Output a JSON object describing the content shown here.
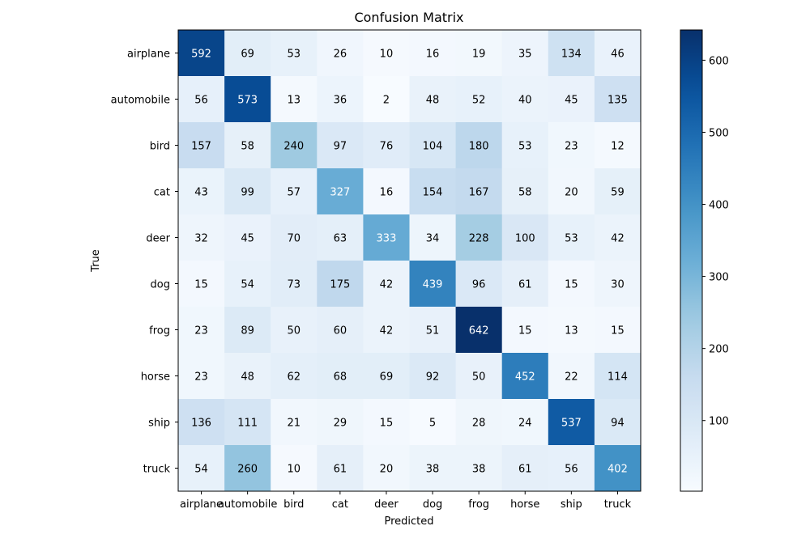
{
  "chart_data": {
    "type": "heatmap",
    "title": "Confusion Matrix",
    "xlabel": "Predicted",
    "ylabel": "True",
    "x_categories": [
      "airplane",
      "automobile",
      "bird",
      "cat",
      "deer",
      "dog",
      "frog",
      "horse",
      "ship",
      "truck"
    ],
    "y_categories": [
      "airplane",
      "automobile",
      "bird",
      "cat",
      "deer",
      "dog",
      "frog",
      "horse",
      "ship",
      "truck"
    ],
    "values": [
      [
        592,
        69,
        53,
        26,
        10,
        16,
        19,
        35,
        134,
        46
      ],
      [
        56,
        573,
        13,
        36,
        2,
        48,
        52,
        40,
        45,
        135
      ],
      [
        157,
        58,
        240,
        97,
        76,
        104,
        180,
        53,
        23,
        12
      ],
      [
        43,
        99,
        57,
        327,
        16,
        154,
        167,
        58,
        20,
        59
      ],
      [
        32,
        45,
        70,
        63,
        333,
        34,
        228,
        100,
        53,
        42
      ],
      [
        15,
        54,
        73,
        175,
        42,
        439,
        96,
        61,
        15,
        30
      ],
      [
        23,
        89,
        50,
        60,
        42,
        51,
        642,
        15,
        13,
        15
      ],
      [
        23,
        48,
        62,
        68,
        69,
        92,
        50,
        452,
        22,
        114
      ],
      [
        136,
        111,
        21,
        29,
        15,
        5,
        28,
        24,
        537,
        94
      ],
      [
        54,
        260,
        10,
        61,
        20,
        38,
        38,
        61,
        56,
        402
      ]
    ],
    "colormap": "Blues",
    "color_range": [
      2,
      642
    ],
    "colorbar_ticks": [
      100,
      200,
      300,
      400,
      500,
      600
    ]
  }
}
